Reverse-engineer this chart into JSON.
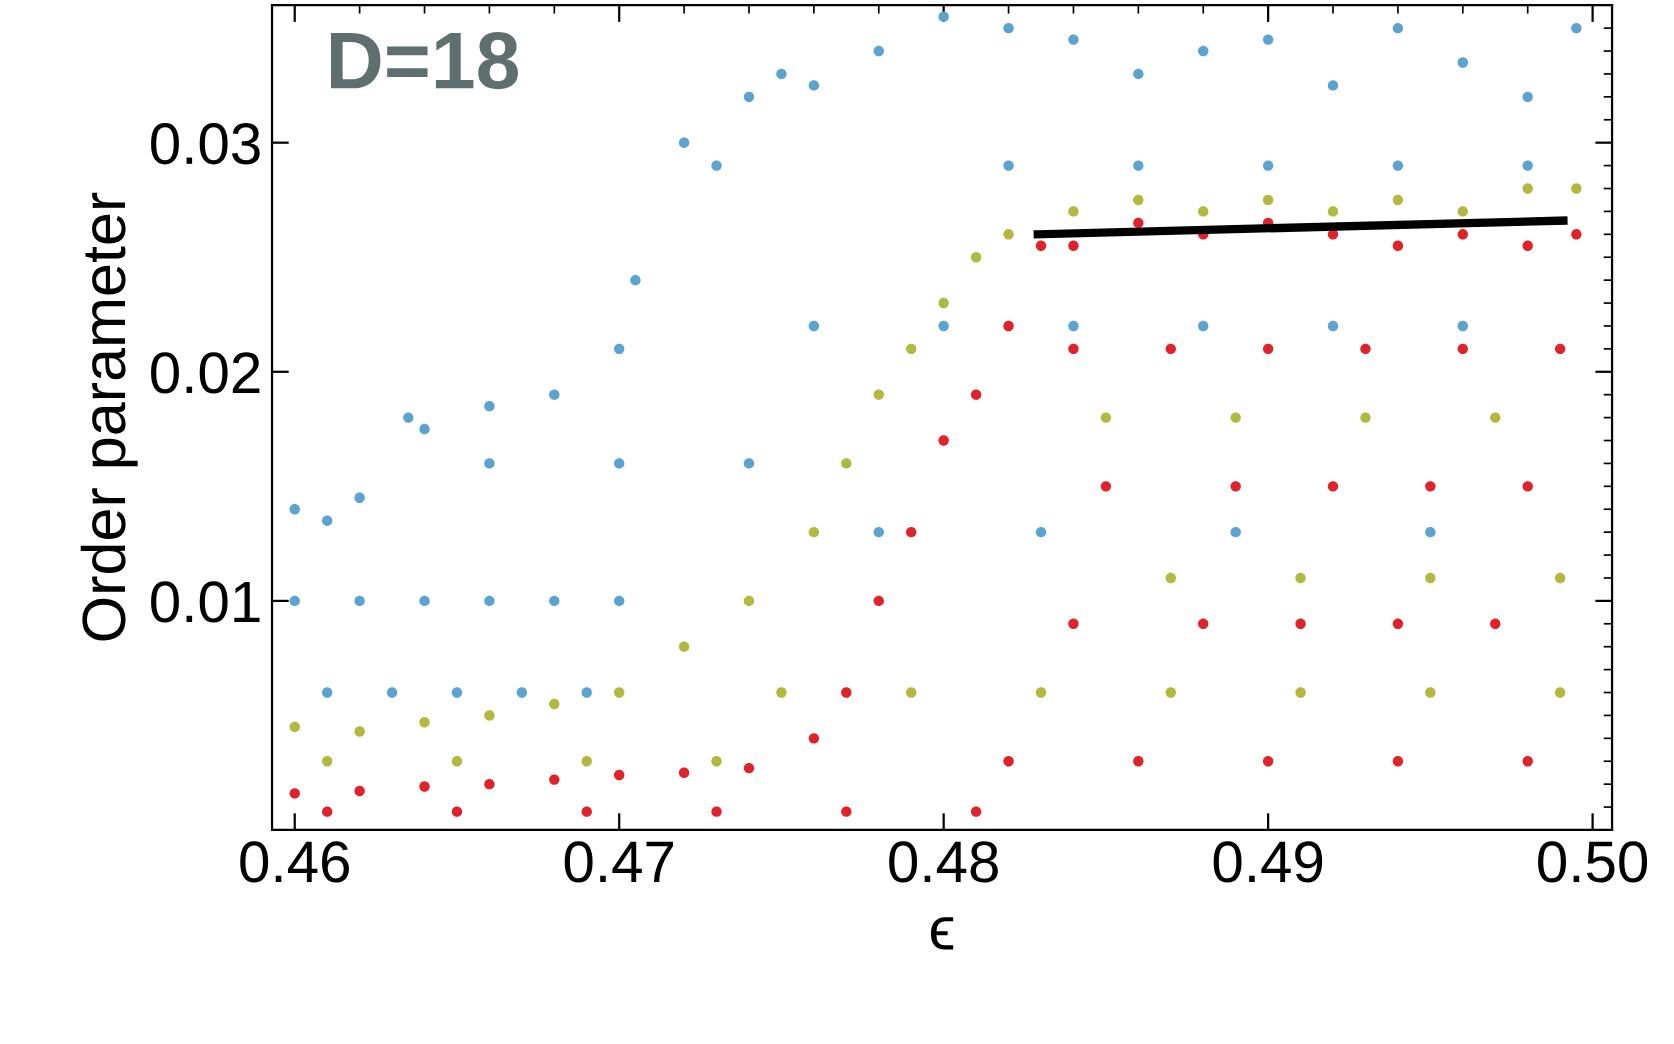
{
  "chart_data": {
    "type": "scatter",
    "xlabel": "ϵ",
    "ylabel": "Order parameter",
    "annotations": [
      "D=18"
    ],
    "xlim": [
      0.4593,
      0.5006
    ],
    "ylim": [
      0,
      0.036
    ],
    "xticks": [
      {
        "value": 0.46,
        "label": "0.46"
      },
      {
        "value": 0.47,
        "label": "0.47"
      },
      {
        "value": 0.48,
        "label": "0.48"
      },
      {
        "value": 0.49,
        "label": "0.49"
      },
      {
        "value": 0.5,
        "label": "0.50"
      }
    ],
    "yticks": [
      0.01,
      0.02,
      0.03
    ],
    "grid": false,
    "legend": false,
    "marker": "circle",
    "series": [
      {
        "color": "#5ba3d0",
        "x": [
          0.46,
          0.461,
          0.462,
          0.4635,
          0.464,
          0.466,
          0.468,
          0.47,
          0.4705,
          0.472,
          0.473,
          0.474,
          0.475,
          0.476,
          0.478,
          0.48,
          0.482,
          0.484,
          0.486,
          0.488,
          0.49,
          0.492,
          0.494,
          0.496,
          0.498,
          0.4995,
          0.46,
          0.462,
          0.464,
          0.466,
          0.468,
          0.47,
          0.461,
          0.463,
          0.465,
          0.467,
          0.469,
          0.466,
          0.47,
          0.474,
          0.476,
          0.48,
          0.484,
          0.488,
          0.492,
          0.496,
          0.482,
          0.486,
          0.49,
          0.494,
          0.498,
          0.478,
          0.483,
          0.489,
          0.495
        ],
        "values": [
          0.014,
          0.0135,
          0.0145,
          0.018,
          0.0175,
          0.0185,
          0.019,
          0.021,
          0.024,
          0.03,
          0.029,
          0.032,
          0.033,
          0.0325,
          0.034,
          0.0355,
          0.035,
          0.0345,
          0.033,
          0.034,
          0.0345,
          0.0325,
          0.035,
          0.0335,
          0.032,
          0.035,
          0.01,
          0.01,
          0.01,
          0.01,
          0.01,
          0.01,
          0.006,
          0.006,
          0.006,
          0.006,
          0.006,
          0.016,
          0.016,
          0.016,
          0.022,
          0.022,
          0.022,
          0.022,
          0.022,
          0.022,
          0.029,
          0.029,
          0.029,
          0.029,
          0.029,
          0.013,
          0.013,
          0.013,
          0.013
        ]
      },
      {
        "color": "#b3b83e",
        "x": [
          0.46,
          0.462,
          0.464,
          0.466,
          0.468,
          0.47,
          0.472,
          0.474,
          0.476,
          0.477,
          0.478,
          0.479,
          0.48,
          0.481,
          0.482,
          0.484,
          0.486,
          0.488,
          0.49,
          0.492,
          0.494,
          0.496,
          0.498,
          0.4995,
          0.461,
          0.465,
          0.469,
          0.473,
          0.475,
          0.479,
          0.483,
          0.487,
          0.491,
          0.495,
          0.499,
          0.485,
          0.489,
          0.493,
          0.497,
          0.487,
          0.491,
          0.495,
          0.499
        ],
        "values": [
          0.0045,
          0.0043,
          0.0047,
          0.005,
          0.0055,
          0.006,
          0.008,
          0.01,
          0.013,
          0.016,
          0.019,
          0.021,
          0.023,
          0.025,
          0.026,
          0.027,
          0.0275,
          0.027,
          0.0275,
          0.027,
          0.0275,
          0.027,
          0.028,
          0.028,
          0.003,
          0.003,
          0.003,
          0.003,
          0.006,
          0.006,
          0.006,
          0.006,
          0.006,
          0.006,
          0.006,
          0.018,
          0.018,
          0.018,
          0.018,
          0.011,
          0.011,
          0.011,
          0.011
        ]
      },
      {
        "color": "#e0232a",
        "x": [
          0.46,
          0.462,
          0.464,
          0.466,
          0.468,
          0.47,
          0.472,
          0.474,
          0.476,
          0.477,
          0.478,
          0.479,
          0.48,
          0.481,
          0.482,
          0.483,
          0.484,
          0.486,
          0.488,
          0.49,
          0.492,
          0.494,
          0.496,
          0.498,
          0.4995,
          0.484,
          0.487,
          0.49,
          0.493,
          0.496,
          0.499,
          0.485,
          0.489,
          0.492,
          0.495,
          0.498,
          0.484,
          0.488,
          0.491,
          0.494,
          0.497,
          0.482,
          0.486,
          0.49,
          0.494,
          0.498,
          0.461,
          0.465,
          0.469,
          0.473,
          0.477,
          0.481
        ],
        "values": [
          0.0016,
          0.0017,
          0.0019,
          0.002,
          0.0022,
          0.0024,
          0.0025,
          0.0027,
          0.004,
          0.006,
          0.01,
          0.013,
          0.017,
          0.019,
          0.022,
          0.0255,
          0.0255,
          0.0265,
          0.026,
          0.0265,
          0.026,
          0.0255,
          0.026,
          0.0255,
          0.026,
          0.021,
          0.021,
          0.021,
          0.021,
          0.021,
          0.021,
          0.015,
          0.015,
          0.015,
          0.015,
          0.015,
          0.009,
          0.009,
          0.009,
          0.009,
          0.009,
          0.003,
          0.003,
          0.003,
          0.003,
          0.003,
          0.0008,
          0.0008,
          0.0008,
          0.0008,
          0.0008,
          0.0008
        ]
      },
      {
        "type": "line",
        "color": "#000000",
        "x": [
          0.4829,
          0.4991
        ],
        "values": [
          0.026,
          0.0266
        ],
        "marker": "none"
      }
    ]
  }
}
